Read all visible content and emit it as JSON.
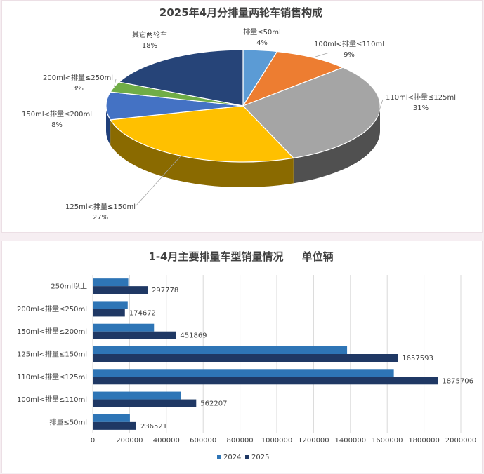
{
  "chart_data": [
    {
      "type": "pie",
      "title": "2025年4月分排量两轮车销售构成",
      "slices": [
        {
          "label": "排量≤50ml",
          "percent": "4%",
          "value": 4,
          "color": "#5b9bd5",
          "dark": "#2f5f8f"
        },
        {
          "label": "100ml<排量≤110ml",
          "percent": "9%",
          "value": 9,
          "color": "#ed7d31",
          "dark": "#9c4a14"
        },
        {
          "label": "110ml<排量≤125ml",
          "percent": "31%",
          "value": 31,
          "color": "#a5a5a5",
          "dark": "#505050"
        },
        {
          "label": "125ml<排量≤150ml",
          "percent": "27%",
          "value": 27,
          "color": "#ffc000",
          "dark": "#8a6a00"
        },
        {
          "label": "150ml<排量≤200ml",
          "percent": "8%",
          "value": 8,
          "color": "#4472c4",
          "dark": "#203f7a"
        },
        {
          "label": "200ml<排量≤250ml",
          "percent": "3%",
          "value": 3,
          "color": "#70ad47",
          "dark": "#3d6a22"
        },
        {
          "label": "其它两轮车",
          "percent": "18%",
          "value": 18,
          "color": "#264478",
          "dark": "#0f2244"
        }
      ]
    },
    {
      "type": "bar",
      "title": "1-4月主要排量车型销量情况     单位辆",
      "categories": [
        "250ml以上",
        "200ml<排量≤250ml",
        "150ml<排量≤200ml",
        "125ml<排量≤150ml",
        "110ml<排量≤125ml",
        "100ml<排量≤110ml",
        "排量≤50ml"
      ],
      "series": [
        {
          "name": "2024",
          "color": "#2e75b6",
          "values": [
            193000,
            190000,
            333000,
            1382000,
            1636000,
            480000,
            202000
          ]
        },
        {
          "name": "2025",
          "color": "#1f3864",
          "values": [
            297778,
            174672,
            451869,
            1657593,
            1875706,
            562207,
            236521
          ]
        }
      ],
      "data_labels": [
        "297778",
        "174672",
        "451869",
        "1657593",
        "1875706",
        "562207",
        "236521"
      ],
      "xlim": [
        0,
        2000000
      ],
      "xticks": [
        "0",
        "200000",
        "400000",
        "600000",
        "800000",
        "1000000",
        "1200000",
        "1400000",
        "1600000",
        "1800000",
        "2000000"
      ],
      "grid": true,
      "legend": "bottom"
    }
  ]
}
